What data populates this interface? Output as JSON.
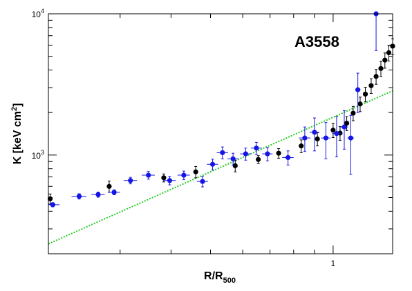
{
  "chart_data": {
    "type": "scatter",
    "title": "",
    "annotation": "A3558",
    "xlabel": {
      "main": "R/R",
      "sub": "500"
    },
    "ylabel": {
      "main": "K [keV cm",
      "sup": "2",
      "end": "]"
    },
    "xscale": "log",
    "yscale": "log",
    "xlim": [
      0.2,
      1.4
    ],
    "ylim": [
      200,
      10000
    ],
    "grid": false,
    "x_tick_labels": [
      {
        "value": 1,
        "label": "1"
      }
    ],
    "y_tick_labels": [
      {
        "value": 1000,
        "label": "10",
        "sup": "3"
      },
      {
        "value": 10000,
        "label": "10",
        "sup": "4"
      }
    ],
    "colors": {
      "black_series": "#000000",
      "blue_series": "#1515e6",
      "fit_line": "#22cc22"
    },
    "series": [
      {
        "color": "black",
        "points": [
          {
            "x": 0.202,
            "y": 490,
            "yerr": 40
          },
          {
            "x": 0.282,
            "y": 600,
            "yerr": 55
          },
          {
            "x": 0.384,
            "y": 690,
            "yerr": 45
          },
          {
            "x": 0.46,
            "y": 760,
            "yerr": 70
          },
          {
            "x": 0.575,
            "y": 840,
            "yerr": 80
          },
          {
            "x": 0.655,
            "y": 930,
            "yerr": 60
          },
          {
            "x": 0.735,
            "y": 1030,
            "yerr": 80
          },
          {
            "x": 0.835,
            "y": 1160,
            "yerr": 120
          },
          {
            "x": 0.915,
            "y": 1300,
            "yerr": 140
          },
          {
            "x": 1.0,
            "y": 1500,
            "yerr": 170
          },
          {
            "x": 1.04,
            "y": 1430,
            "yerr": 160
          },
          {
            "x": 1.08,
            "y": 1680,
            "yerr": 190
          },
          {
            "x": 1.12,
            "y": 1980,
            "yerr": 230
          },
          {
            "x": 1.165,
            "y": 2300,
            "yerr": 270
          },
          {
            "x": 1.2,
            "y": 2700,
            "yerr": 320
          },
          {
            "x": 1.24,
            "y": 3100,
            "yerr": 370
          },
          {
            "x": 1.275,
            "y": 3600,
            "yerr": 430
          },
          {
            "x": 1.31,
            "y": 4100,
            "yerr": 500
          },
          {
            "x": 1.34,
            "y": 4700,
            "yerr": 580
          },
          {
            "x": 1.37,
            "y": 5300,
            "yerr": 670
          },
          {
            "x": 1.4,
            "y": 5900,
            "yerr": 760
          }
        ]
      },
      {
        "color": "blue",
        "points": [
          {
            "x": 0.205,
            "y": 445,
            "xerr": 0.008,
            "yerr": 15
          },
          {
            "x": 0.238,
            "y": 510,
            "xerr": 0.01,
            "yerr": 22
          },
          {
            "x": 0.265,
            "y": 525,
            "xerr": 0.01,
            "yerr": 22
          },
          {
            "x": 0.29,
            "y": 545,
            "xerr": 0.01,
            "yerr": 22
          },
          {
            "x": 0.318,
            "y": 660,
            "xerr": 0.012,
            "yerr": 35
          },
          {
            "x": 0.352,
            "y": 720,
            "xerr": 0.013,
            "yerr": 45
          },
          {
            "x": 0.397,
            "y": 660,
            "xerr": 0.014,
            "yerr": 45
          },
          {
            "x": 0.43,
            "y": 720,
            "xerr": 0.015,
            "yerr": 50
          },
          {
            "x": 0.478,
            "y": 650,
            "xerr": 0.015,
            "yerr": 55
          },
          {
            "x": 0.506,
            "y": 860,
            "xerr": 0.016,
            "yerr": 75
          },
          {
            "x": 0.535,
            "y": 1040,
            "xerr": 0.017,
            "yerr": 100
          },
          {
            "x": 0.568,
            "y": 940,
            "xerr": 0.018,
            "yerr": 90
          },
          {
            "x": 0.61,
            "y": 1020,
            "xerr": 0.019,
            "yerr": 100
          },
          {
            "x": 0.648,
            "y": 1120,
            "xerr": 0.02,
            "yerr": 110
          },
          {
            "x": 0.69,
            "y": 1020,
            "xerr": 0.02,
            "yerr": 110
          },
          {
            "x": 0.775,
            "y": 960,
            "xerr": 0.025,
            "yerr": 110
          },
          {
            "x": 0.852,
            "y": 1320,
            "xerr": 0.028,
            "yerr": 260
          },
          {
            "x": 0.9,
            "y": 1450,
            "xerr": 0.025,
            "yerr": 380
          },
          {
            "x": 0.96,
            "y": 1320,
            "xerr": 0.025,
            "yerr": 380
          },
          {
            "x": 1.02,
            "y": 1420,
            "xerr": 0.025,
            "yerr": 450
          },
          {
            "x": 1.065,
            "y": 1580,
            "xerr": 0.022,
            "yerr": 480
          },
          {
            "x": 1.105,
            "y": 1320,
            "xerr": 0.02,
            "yerr": 590
          },
          {
            "x": 1.15,
            "y": 2900,
            "xerr": 0.018,
            "yerr": 900
          },
          {
            "x": 1.275,
            "y": 10000,
            "xerr": 0.01,
            "yerr": 4500
          }
        ]
      }
    ],
    "fit_line": {
      "style": "dotted",
      "points": [
        [
          0.2,
          235
        ],
        [
          1.4,
          2850
        ]
      ]
    }
  }
}
